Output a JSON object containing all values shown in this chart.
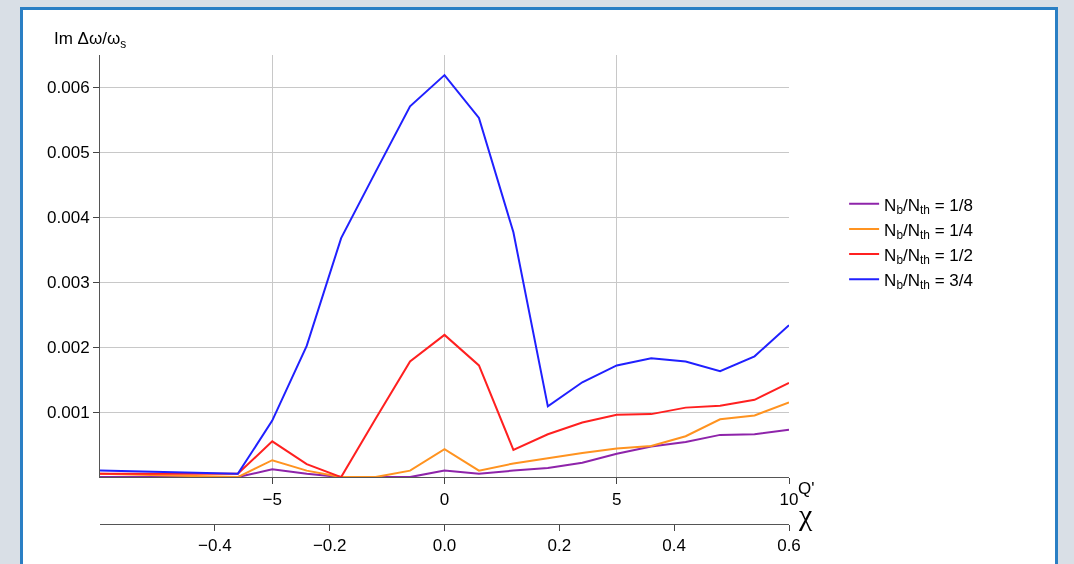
{
  "chart_data": {
    "type": "line",
    "ylabel": "Im Δω/ω$_{s}$",
    "xlabel": "Q'",
    "x2label": "χ",
    "x": [
      -10,
      -6,
      -5,
      -4,
      -3,
      -2,
      -1,
      0,
      1,
      2,
      3,
      4,
      5,
      6,
      7,
      8,
      9,
      10
    ],
    "series": [
      {
        "name": "N$_{b}$/N$_{th}$ = 1/8",
        "color": "#8e24aa",
        "values": [
          0.0,
          0.0,
          0.00012,
          5e-05,
          0.0,
          0.0,
          0.0,
          0.0001,
          5e-05,
          0.0001,
          0.00014,
          0.00022,
          0.00036,
          0.00047,
          0.00054,
          0.00065,
          0.00066,
          0.00073
        ]
      },
      {
        "name": "N$_{b}$/N$_{th}$ = 1/4",
        "color": "#ff9320",
        "values": [
          5e-05,
          0.0,
          0.00026,
          0.0001,
          0.0,
          0.0,
          0.0001,
          0.00043,
          0.0001,
          0.00021,
          0.00029,
          0.00037,
          0.00044,
          0.00048,
          0.00063,
          0.00089,
          0.00095,
          0.00115
        ]
      },
      {
        "name": "N$_{b}$/N$_{th}$ = 1/2",
        "color": "#ff2020",
        "values": [
          5e-05,
          5e-05,
          0.00055,
          0.0002,
          0.0,
          0.0009,
          0.00178,
          0.00219,
          0.00172,
          0.00042,
          0.00066,
          0.00084,
          0.00096,
          0.00097,
          0.00107,
          0.0011,
          0.00119,
          0.00145
        ]
      },
      {
        "name": "N$_{b}$/N$_{th}$ = 3/4",
        "color": "#2020ff",
        "values": [
          0.0001,
          5e-05,
          0.00087,
          0.00202,
          0.00368,
          0.0047,
          0.00571,
          0.00619,
          0.00553,
          0.00377,
          0.00109,
          0.00146,
          0.00172,
          0.00183,
          0.00178,
          0.00163,
          0.00186,
          0.00234
        ]
      }
    ],
    "xlim": [
      -10,
      10
    ],
    "xticks": [
      -5,
      0,
      5,
      10
    ],
    "x2lim": [
      -0.6,
      0.6
    ],
    "x2ticks": [
      {
        "value": -0.4,
        "label": "−0.4"
      },
      {
        "value": -0.2,
        "label": "−0.2"
      },
      {
        "value": 0,
        "label": "0.0"
      },
      {
        "value": 0.2,
        "label": "0.2"
      },
      {
        "value": 0.4,
        "label": "0.4"
      },
      {
        "value": 0.6,
        "label": "0.6"
      }
    ],
    "ylim": [
      0,
      0.0065
    ],
    "yticks": [
      0.001,
      0.002,
      0.003,
      0.004,
      0.005,
      0.006
    ],
    "grid": true,
    "legend": "right",
    "marker": "none",
    "line_style": "solid"
  }
}
